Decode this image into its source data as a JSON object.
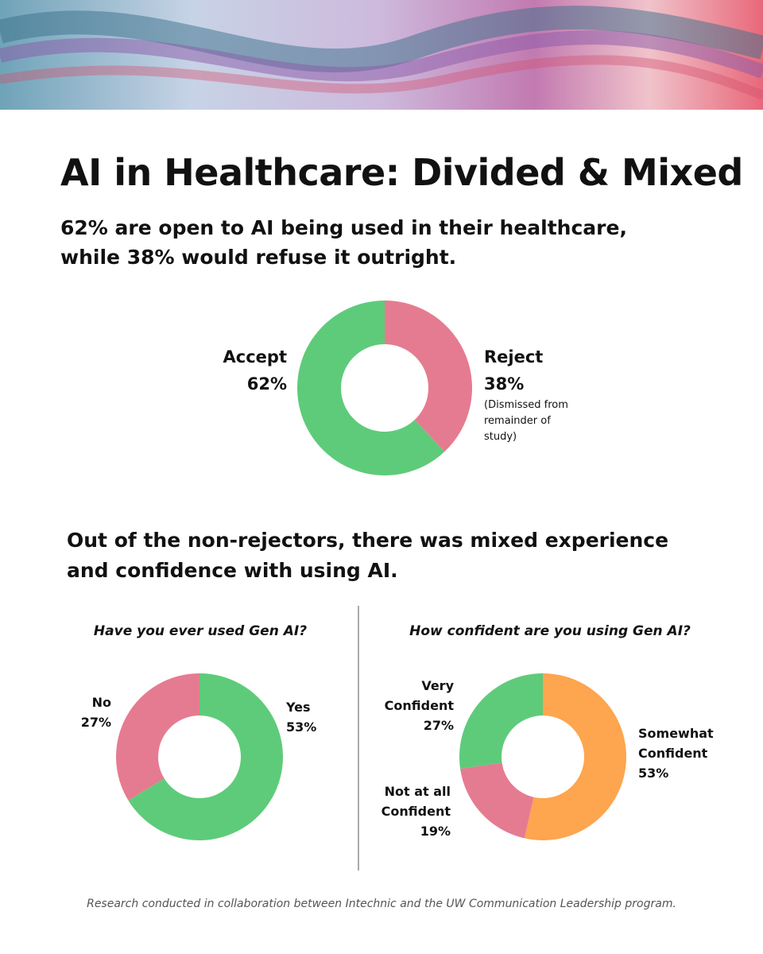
{
  "title": "AI in Healthcare: Divided & Mixed",
  "subtitle": "62% are open to AI being used in their healthcare, while 38% would refuse it outright.",
  "section_heading": "Out of the non-rejectors, there was mixed experience and confidence with using AI.",
  "footer": "Research conducted in collaboration between Intechnic and the UW Communication Leadership program.",
  "chart_data": [
    {
      "type": "donut",
      "categories": [
        "Reject",
        "Accept"
      ],
      "values": [
        38,
        62
      ],
      "value_labels": [
        "38%",
        "62%"
      ],
      "colors": [
        "#e57b91",
        "#5ecb7a"
      ],
      "annotation": "(Dismissed from remainder of study)"
    },
    {
      "type": "donut",
      "title": "Have you ever used Gen AI?",
      "categories": [
        "Yes",
        "No"
      ],
      "values": [
        53,
        27
      ],
      "value_labels": [
        "53%",
        "27%"
      ],
      "colors": [
        "#5ecb7a",
        "#e57b91"
      ]
    },
    {
      "type": "donut",
      "title": "How confident are you using Gen AI?",
      "categories": [
        "Somewhat Confident",
        "Not at all Confident",
        "Very Confident"
      ],
      "values": [
        53,
        19,
        27
      ],
      "value_labels": [
        "53%",
        "19%",
        "27%"
      ],
      "colors": [
        "#fda54f",
        "#e57b91",
        "#5ecb7a"
      ]
    }
  ]
}
